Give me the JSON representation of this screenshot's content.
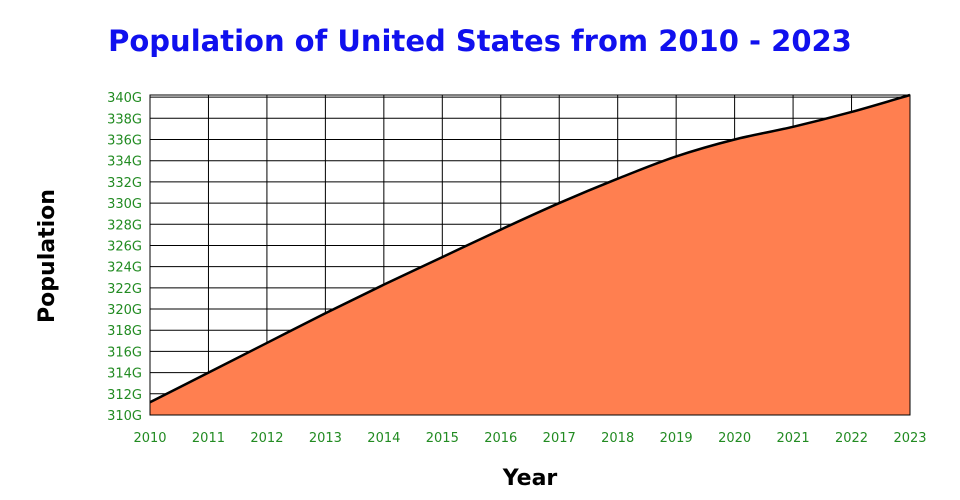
{
  "chart_data": {
    "type": "area",
    "title": "Population of United States from 2010 - 2023",
    "xlabel": "Year",
    "ylabel": "Population",
    "x": [
      2010,
      2011,
      2012,
      2013,
      2014,
      2015,
      2016,
      2017,
      2018,
      2019,
      2020,
      2021,
      2022,
      2023
    ],
    "series": [
      {
        "values": [
          311.2,
          314.0,
          316.8,
          319.6,
          322.3,
          324.9,
          327.5,
          330.0,
          332.3,
          334.4,
          336.0,
          337.2,
          338.6,
          340.2
        ]
      }
    ],
    "ylim": [
      310,
      340.2
    ],
    "y_ticks": [
      "310G",
      "312G",
      "314G",
      "316G",
      "318G",
      "320G",
      "322G",
      "324G",
      "326G",
      "328G",
      "330G",
      "332G",
      "334G",
      "336G",
      "338G",
      "340G"
    ],
    "x_ticks": [
      "2010",
      "2011",
      "2012",
      "2013",
      "2014",
      "2015",
      "2016",
      "2017",
      "2018",
      "2019",
      "2020",
      "2021",
      "2022",
      "2023"
    ],
    "grid": true,
    "fill_color": "#ff7f50",
    "line_color": "#000000",
    "title_color": "#1010ee",
    "tick_color": "#228b22"
  }
}
